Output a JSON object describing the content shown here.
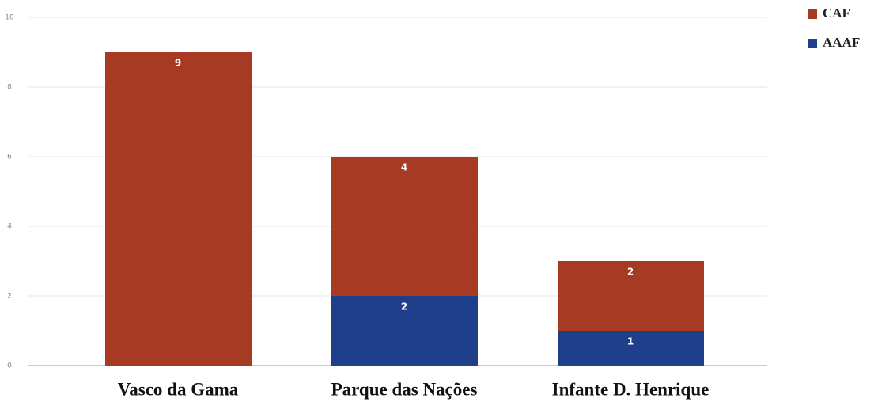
{
  "chart_data": {
    "type": "stacked_bar",
    "categories": [
      "Vasco da Gama",
      "Parque das Nações",
      "Infante D. Henrique"
    ],
    "series": [
      {
        "name": "AAAF",
        "color": "#1f3f8a",
        "values": [
          0,
          2,
          1
        ]
      },
      {
        "name": "CAF",
        "color": "#a63a22",
        "values": [
          9,
          4,
          2
        ]
      }
    ],
    "ylim": [
      0,
      10
    ],
    "yticks": [
      0,
      2,
      4,
      6,
      8,
      10
    ],
    "grid": true,
    "legend": "top-right"
  }
}
